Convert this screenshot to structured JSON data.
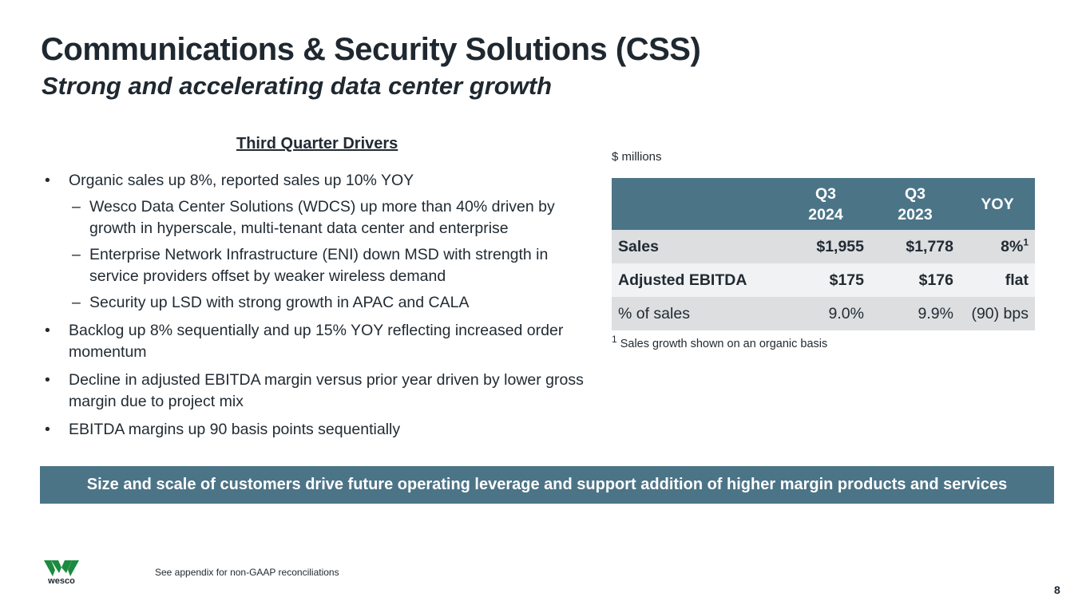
{
  "header": {
    "title": "Communications & Security Solutions (CSS)",
    "subtitle": "Strong and accelerating data center growth"
  },
  "drivers": {
    "heading": "Third Quarter Drivers",
    "bullets": [
      "Organic sales up 8%, reported sales up 10% YOY",
      "Wesco Data Center Solutions (WDCS) up more than 40% driven by growth in hyperscale, multi-tenant data center and enterprise",
      "Enterprise Network Infrastructure (ENI) down MSD with strength in service providers offset by weaker wireless demand",
      "Security up LSD with strong growth in APAC and CALA",
      "Backlog up 8% sequentially and up 15% YOY reflecting increased order momentum",
      "Decline in adjusted EBITDA margin versus prior year driven by lower gross margin due to project mix",
      "EBITDA margins up 90 basis points sequentially"
    ]
  },
  "table": {
    "units": "$ millions",
    "headers": {
      "q3_2024_line1": "Q3",
      "q3_2024_line2": "2024",
      "q3_2023_line1": "Q3",
      "q3_2023_line2": "2023",
      "yoy": "YOY"
    },
    "rows": [
      {
        "label": "Sales",
        "q3_2024": "$1,955",
        "q3_2023": "$1,778",
        "yoy": "8%",
        "yoy_sup": "1"
      },
      {
        "label": "Adjusted EBITDA",
        "q3_2024": "$175",
        "q3_2023": "$176",
        "yoy": "flat"
      },
      {
        "label": "% of sales",
        "q3_2024": "9.0%",
        "q3_2023": "9.9%",
        "yoy": "(90) bps"
      }
    ],
    "footnote_marker": "1",
    "footnote": "Sales growth shown on an organic basis"
  },
  "banner": {
    "text": "Size and scale of customers drive future operating leverage and support addition of higher margin products and services"
  },
  "footer": {
    "logo_text": "wesco",
    "note": "See appendix for non-GAAP reconciliations",
    "page_number": "8"
  },
  "colors": {
    "accent_blue": "#4c7487",
    "logo_green": "#1c8b3f",
    "text_dark": "#1f2830"
  }
}
